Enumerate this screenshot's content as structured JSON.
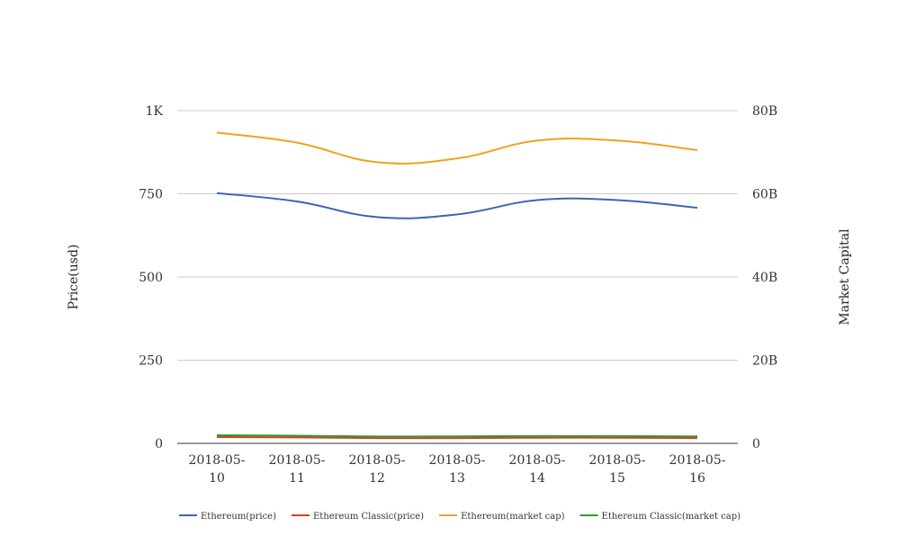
{
  "chart_data": {
    "type": "line",
    "title": "",
    "xlabel": "",
    "ylabel": "Price(usd)",
    "y2label": "Market Capital",
    "ylim": [
      0,
      1000
    ],
    "y2lim": [
      0,
      80000000000
    ],
    "y_ticks": [
      {
        "value": 0,
        "label": "0"
      },
      {
        "value": 250,
        "label": "250"
      },
      {
        "value": 500,
        "label": "500"
      },
      {
        "value": 750,
        "label": "750"
      },
      {
        "value": 1000,
        "label": "1K"
      }
    ],
    "y2_ticks": [
      {
        "value": 0,
        "label": "0"
      },
      {
        "value": 20000000000,
        "label": "20B"
      },
      {
        "value": 40000000000,
        "label": "40B"
      },
      {
        "value": 60000000000,
        "label": "60B"
      },
      {
        "value": 80000000000,
        "label": "80B"
      }
    ],
    "categories": [
      [
        "2018-05-",
        "10"
      ],
      [
        "2018-05-",
        "11"
      ],
      [
        "2018-05-",
        "12"
      ],
      [
        "2018-05-",
        "13"
      ],
      [
        "2018-05-",
        "14"
      ],
      [
        "2018-05-",
        "15"
      ],
      [
        "2018-05-",
        "16"
      ]
    ],
    "grid": true,
    "legend_position": "bottom",
    "series": [
      {
        "name": "Ethereum(price)",
        "axis": "left",
        "color": "#3b64b4",
        "values": [
          752,
          727,
          680,
          688,
          731,
          731,
          708
        ]
      },
      {
        "name": "Ethereum Classic(price)",
        "axis": "left",
        "color": "#d9401e",
        "values": [
          19,
          18,
          16,
          16,
          17,
          17,
          16
        ]
      },
      {
        "name": "Ethereum(market cap)",
        "axis": "right",
        "color": "#f0a21f",
        "values": [
          74700000000,
          72300000000,
          67600000000,
          68500000000,
          72800000000,
          72800000000,
          70500000000
        ]
      },
      {
        "name": "Ethereum Classic(market cap)",
        "axis": "right",
        "color": "#2e9b2e",
        "values": [
          1950000000,
          1850000000,
          1650000000,
          1680000000,
          1750000000,
          1750000000,
          1670000000
        ]
      }
    ]
  }
}
